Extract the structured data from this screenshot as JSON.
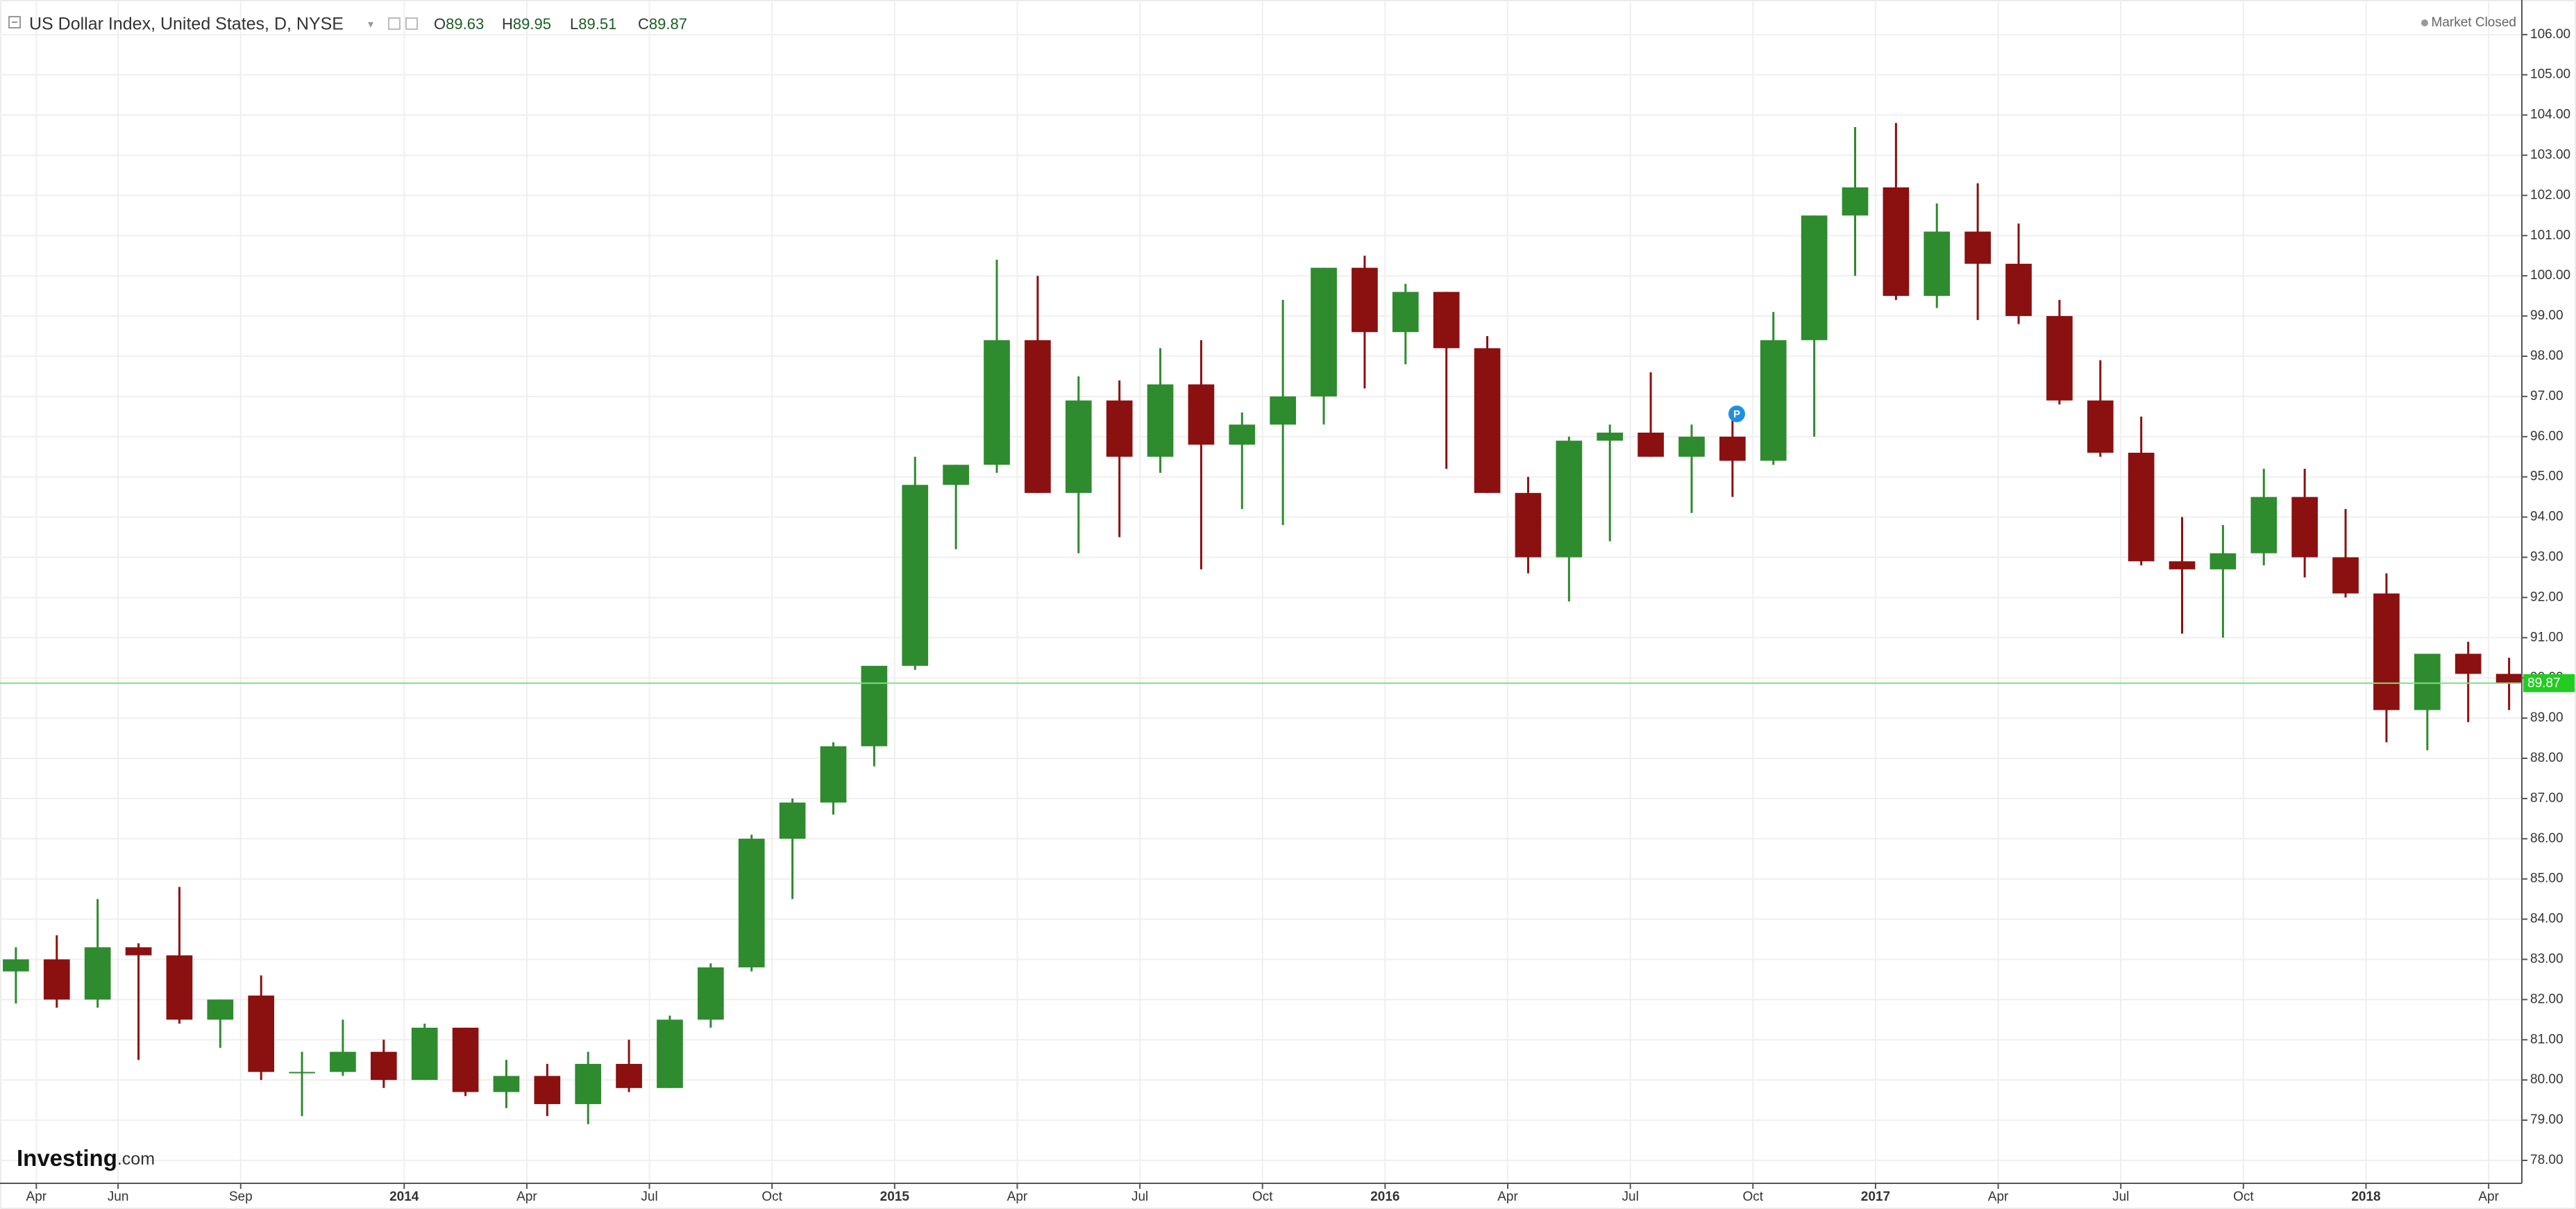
{
  "chart_data": {
    "type": "candlestick",
    "title": "US Dollar Index, United States, D, NYSE",
    "legend_ohlc": [
      {
        "label": "O",
        "value": 89.63
      },
      {
        "label": "H",
        "value": 89.95
      },
      {
        "label": "L",
        "value": 89.51
      },
      {
        "label": "C",
        "value": 89.87
      }
    ],
    "status": "Market Closed",
    "logo": "Investing",
    "logo_suffix": ".com",
    "marker_label": "P",
    "last_price": 89.87,
    "up_color": "#2e8b2e",
    "down_color": "#8b1010",
    "grid": true,
    "x": [
      "2013-03",
      "2013-04",
      "2013-05",
      "2013-06",
      "2013-07",
      "2013-08",
      "2013-09",
      "2013-10",
      "2013-11",
      "2013-12",
      "2014-01",
      "2014-02",
      "2014-03",
      "2014-04",
      "2014-05",
      "2014-06",
      "2014-07",
      "2014-08",
      "2014-09",
      "2014-10",
      "2014-11",
      "2014-12",
      "2015-01",
      "2015-02",
      "2015-03",
      "2015-04",
      "2015-05",
      "2015-06",
      "2015-07",
      "2015-08",
      "2015-09",
      "2015-10",
      "2015-11",
      "2015-12",
      "2016-01",
      "2016-02",
      "2016-03",
      "2016-04",
      "2016-05",
      "2016-06",
      "2016-07",
      "2016-08",
      "2016-09",
      "2016-10",
      "2016-11",
      "2016-12",
      "2017-01",
      "2017-02",
      "2017-03",
      "2017-04",
      "2017-05",
      "2017-06",
      "2017-07",
      "2017-08",
      "2017-09",
      "2017-10",
      "2017-11",
      "2017-12",
      "2018-01",
      "2018-02",
      "2018-03",
      "2018-04"
    ],
    "open": [
      82.7,
      83.0,
      82.0,
      83.3,
      83.1,
      81.5,
      82.1,
      80.2,
      80.2,
      80.7,
      80.0,
      81.3,
      79.7,
      80.1,
      79.4,
      80.4,
      79.8,
      81.5,
      82.8,
      86.0,
      86.9,
      88.3,
      90.3,
      94.8,
      95.3,
      98.4,
      94.6,
      96.9,
      95.5,
      97.3,
      95.8,
      96.3,
      97.0,
      100.2,
      98.6,
      99.6,
      98.2,
      94.6,
      93.0,
      95.9,
      96.1,
      95.5,
      96.0,
      95.4,
      98.4,
      101.5,
      102.2,
      99.5,
      101.1,
      100.3,
      99.0,
      96.9,
      95.6,
      92.9,
      92.7,
      93.1,
      94.5,
      93.0,
      92.1,
      89.2,
      90.6,
      90.1
    ],
    "high": [
      83.3,
      83.6,
      84.5,
      83.4,
      84.8,
      82.0,
      82.6,
      80.7,
      81.5,
      81.0,
      81.4,
      81.3,
      80.5,
      80.4,
      80.7,
      81.0,
      81.6,
      82.9,
      86.1,
      87.0,
      88.4,
      90.3,
      95.5,
      95.3,
      100.4,
      100.0,
      97.5,
      97.4,
      98.2,
      98.4,
      96.6,
      99.4,
      100.2,
      100.5,
      99.8,
      99.6,
      98.5,
      95.0,
      96.0,
      96.3,
      97.6,
      96.3,
      96.4,
      99.1,
      101.5,
      103.7,
      103.8,
      101.8,
      102.3,
      101.3,
      99.4,
      97.9,
      96.5,
      94.0,
      93.8,
      95.2,
      95.2,
      94.2,
      92.6,
      90.6,
      90.9,
      90.5
    ],
    "low": [
      81.9,
      81.8,
      81.8,
      80.5,
      81.4,
      80.8,
      80.0,
      79.1,
      80.1,
      79.8,
      80.0,
      79.6,
      79.3,
      79.1,
      78.9,
      79.7,
      79.8,
      81.3,
      82.7,
      84.5,
      86.6,
      87.8,
      90.2,
      93.2,
      95.1,
      94.6,
      93.1,
      93.5,
      95.1,
      92.7,
      94.2,
      93.8,
      96.3,
      97.2,
      97.8,
      95.2,
      94.6,
      92.6,
      91.9,
      93.4,
      95.5,
      94.1,
      94.5,
      95.3,
      96.0,
      100.0,
      99.4,
      99.2,
      98.9,
      98.8,
      96.8,
      95.5,
      92.8,
      91.1,
      91.0,
      92.8,
      92.5,
      92.0,
      88.4,
      88.2,
      88.9,
      89.2
    ],
    "close": [
      83.0,
      82.0,
      83.3,
      83.1,
      81.5,
      82.0,
      80.2,
      80.2,
      80.7,
      80.0,
      81.3,
      79.7,
      80.1,
      79.4,
      80.4,
      79.8,
      81.5,
      82.8,
      86.0,
      86.9,
      88.3,
      90.3,
      94.8,
      95.3,
      98.4,
      94.6,
      96.9,
      95.5,
      97.3,
      95.8,
      96.3,
      97.0,
      100.2,
      98.6,
      99.6,
      98.2,
      94.6,
      93.0,
      95.9,
      96.1,
      95.5,
      96.0,
      95.4,
      98.4,
      101.5,
      102.2,
      99.5,
      101.1,
      100.3,
      99.0,
      96.9,
      95.6,
      92.9,
      92.7,
      93.1,
      94.5,
      93.0,
      92.1,
      89.2,
      90.6,
      90.1,
      89.87
    ],
    "ylim": [
      77.43,
      106.86
    ],
    "yticks": [
      {
        "value": 78,
        "label": "78.00"
      },
      {
        "value": 79,
        "label": "79.00"
      },
      {
        "value": 80,
        "label": "80.00"
      },
      {
        "value": 81,
        "label": "81.00"
      },
      {
        "value": 82,
        "label": "82.00"
      },
      {
        "value": 83,
        "label": "83.00"
      },
      {
        "value": 84,
        "label": "84.00"
      },
      {
        "value": 85,
        "label": "85.00"
      },
      {
        "value": 86,
        "label": "86.00"
      },
      {
        "value": 87,
        "label": "87.00"
      },
      {
        "value": 88,
        "label": "88.00"
      },
      {
        "value": 89,
        "label": "89.00"
      },
      {
        "value": 90,
        "label": "90.00"
      },
      {
        "value": 91,
        "label": "91.00"
      },
      {
        "value": 92,
        "label": "92.00"
      },
      {
        "value": 93,
        "label": "93.00"
      },
      {
        "value": 94,
        "label": "94.00"
      },
      {
        "value": 95,
        "label": "95.00"
      },
      {
        "value": 96,
        "label": "96.00"
      },
      {
        "value": 97,
        "label": "97.00"
      },
      {
        "value": 98,
        "label": "98.00"
      },
      {
        "value": 99,
        "label": "99.00"
      },
      {
        "value": 100,
        "label": "100.00"
      },
      {
        "value": 101,
        "label": "101.00"
      },
      {
        "value": 102,
        "label": "102.00"
      },
      {
        "value": 103,
        "label": "103.00"
      },
      {
        "value": 104,
        "label": "104.00"
      },
      {
        "value": 105,
        "label": "105.00"
      },
      {
        "value": 106,
        "label": "106.00"
      }
    ],
    "xticks": [
      {
        "value": "2013-04",
        "label": "Apr"
      },
      {
        "value": "2013-06",
        "label": "Jun"
      },
      {
        "value": "2013-09",
        "label": "Sep"
      },
      {
        "value": "2014-01",
        "label": "2014"
      },
      {
        "value": "2014-04",
        "label": "Apr"
      },
      {
        "value": "2014-07",
        "label": "Jul"
      },
      {
        "value": "2014-10",
        "label": "Oct"
      },
      {
        "value": "2015-01",
        "label": "2015"
      },
      {
        "value": "2015-04",
        "label": "Apr"
      },
      {
        "value": "2015-07",
        "label": "Jul"
      },
      {
        "value": "2015-10",
        "label": "Oct"
      },
      {
        "value": "2016-01",
        "label": "2016"
      },
      {
        "value": "2016-04",
        "label": "Apr"
      },
      {
        "value": "2016-07",
        "label": "Jul"
      },
      {
        "value": "2016-10",
        "label": "Oct"
      },
      {
        "value": "2017-01",
        "label": "2017"
      },
      {
        "value": "2017-04",
        "label": "Apr"
      },
      {
        "value": "2017-07",
        "label": "Jul"
      },
      {
        "value": "2017-10",
        "label": "Oct"
      },
      {
        "value": "2018-01",
        "label": "2018"
      },
      {
        "value": "2018-04",
        "label": "Apr"
      }
    ]
  }
}
